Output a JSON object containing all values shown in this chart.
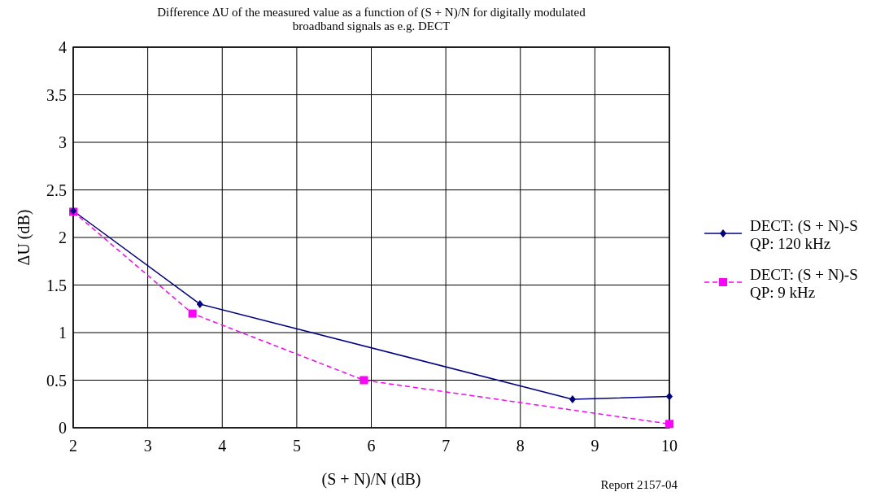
{
  "chart_data": {
    "type": "line",
    "title": "Difference ΔU of the measured value as a function of (S + N)/N for digitally modulated broadband signals as e.g. DECT",
    "xlabel": "(S + N)/N (dB)",
    "ylabel": "ΔU (dB)",
    "annotations": [
      "Report 2157-04"
    ],
    "xlim": [
      2,
      10
    ],
    "xticks": [
      2,
      3,
      4,
      5,
      6,
      7,
      8,
      9,
      10
    ],
    "ylim": [
      0,
      4
    ],
    "yticks": [
      0,
      0.5,
      1,
      1.5,
      2,
      2.5,
      3,
      3.5,
      4
    ],
    "grid": true,
    "legend": "right",
    "series": [
      {
        "name": "DECT: (S + N)-S QP: 120 kHz",
        "color": "#000080",
        "x": [
          2,
          3.7,
          8.7,
          10
        ],
        "values": [
          2.28,
          1.3,
          0.3,
          0.33
        ],
        "marker": "diamond",
        "line_style": "solid"
      },
      {
        "name": "DECT: (S + N)-S QP: 9 kHz",
        "color": "#ff00ff",
        "x": [
          2,
          3.6,
          5.9,
          10
        ],
        "values": [
          2.27,
          1.2,
          0.5,
          0.04
        ],
        "marker": "square",
        "line_style": "dashed"
      }
    ]
  }
}
